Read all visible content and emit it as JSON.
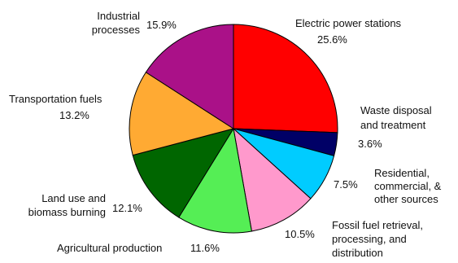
{
  "chart_data": {
    "type": "pie",
    "title": "",
    "slices": [
      {
        "label": "Electric power stations",
        "value": 25.6,
        "value_label": "25.6%",
        "color": "#ff0000"
      },
      {
        "label": "Waste disposal and treatment",
        "value": 3.6,
        "value_label": "3.6%",
        "color": "#000066"
      },
      {
        "label": "Residential, commercial, & other sources",
        "value": 7.5,
        "value_label": "7.5%",
        "color": "#00ccff"
      },
      {
        "label": "Fossil fuel retrieval, processing, and distribution",
        "value": 10.5,
        "value_label": "10.5%",
        "color": "#ff99cc"
      },
      {
        "label": "Agricultural production",
        "value": 11.6,
        "value_label": "11.6%",
        "color": "#55ee55"
      },
      {
        "label": "Land use and biomass burning",
        "value": 12.1,
        "value_label": "12.1%",
        "color": "#006600"
      },
      {
        "label": "Transportation fuels",
        "value": 13.2,
        "value_label": "13.2%",
        "color": "#ffaa33"
      },
      {
        "label": "Industrial processes",
        "value": 15.9,
        "value_label": "15.9%",
        "color": "#aa1188"
      }
    ]
  }
}
